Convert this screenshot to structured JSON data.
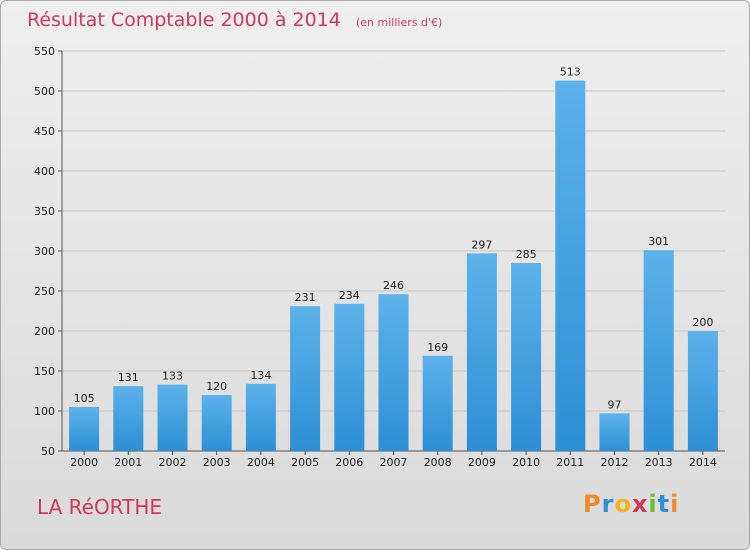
{
  "page": {
    "title": "Résultat Comptable 2000 à 2014",
    "subtitle": "(en milliers d'€)",
    "place": "LA RéORTHE",
    "logo": "Proxiti"
  },
  "colors": {
    "accent": "#d1385b",
    "bar": "#2d8fd5",
    "bar_light": "#5cb2ea"
  },
  "chart_data": {
    "type": "bar",
    "title": "Résultat Comptable 2000 à 2014",
    "subtitle": "(en milliers d'€)",
    "xlabel": "",
    "ylabel": "",
    "ylim": [
      50,
      550
    ],
    "yticks": [
      50,
      100,
      150,
      200,
      250,
      300,
      350,
      400,
      450,
      500,
      550
    ],
    "categories": [
      "2000",
      "2001",
      "2002",
      "2003",
      "2004",
      "2005",
      "2006",
      "2007",
      "2008",
      "2009",
      "2010",
      "2011",
      "2012",
      "2013",
      "2014"
    ],
    "values": [
      105,
      131,
      133,
      120,
      134,
      231,
      234,
      246,
      169,
      297,
      285,
      513,
      97,
      301,
      200
    ],
    "grid": true,
    "legend": "none"
  }
}
